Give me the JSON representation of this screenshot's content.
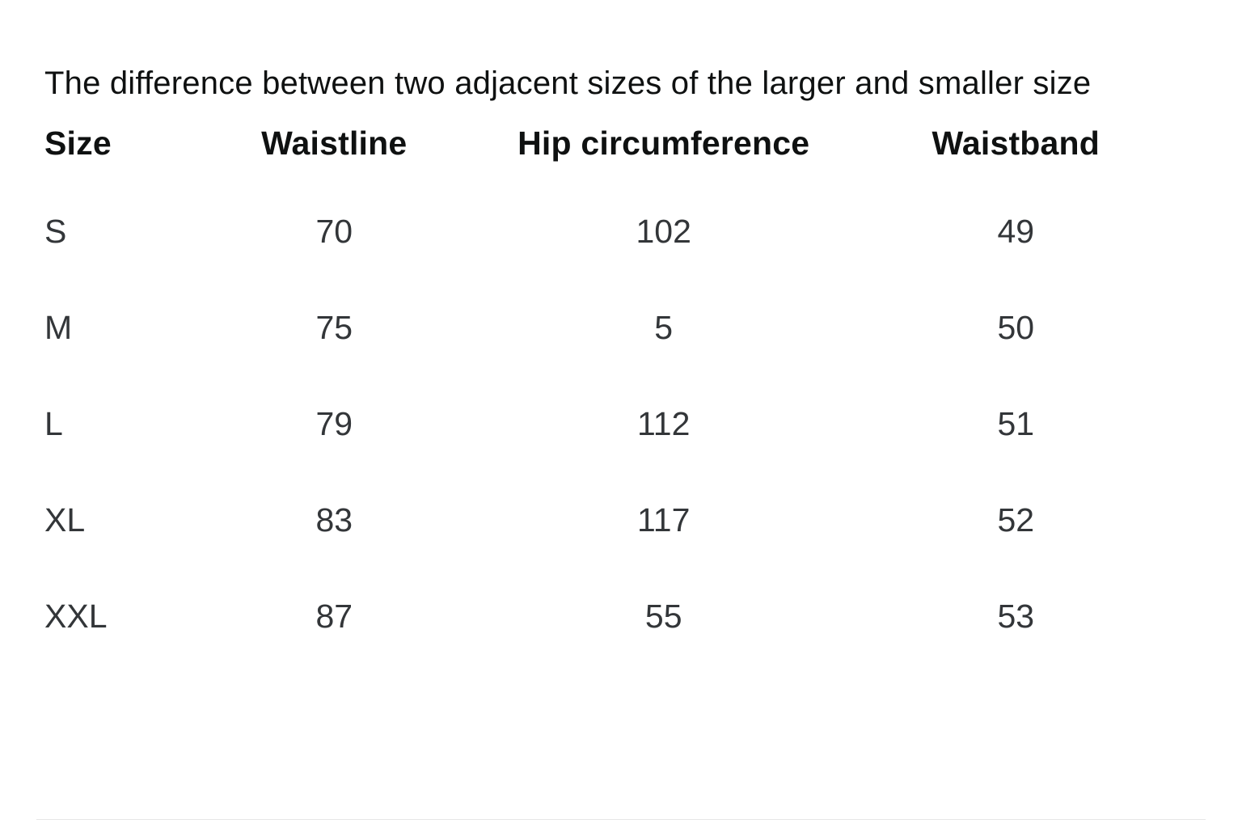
{
  "page": {
    "title": "The difference between two adjacent sizes of the larger and smaller size"
  },
  "size_chart": {
    "columns": [
      "Size",
      "Waistline",
      "Hip circumference",
      "Waistband"
    ],
    "rows": [
      {
        "size": "S",
        "waistline": "70",
        "hip": "102",
        "waistband": "49"
      },
      {
        "size": "M",
        "waistline": "75",
        "hip": "5",
        "waistband": "50"
      },
      {
        "size": "L",
        "waistline": "79",
        "hip": "112",
        "waistband": "51"
      },
      {
        "size": "XL",
        "waistline": "83",
        "hip": "117",
        "waistband": "52"
      },
      {
        "size": "XXL",
        "waistline": "87",
        "hip": "55",
        "waistband": "53"
      }
    ]
  },
  "colors": {
    "background": "#ffffff",
    "heading_text": "#0f1111",
    "body_text": "#333639",
    "divider": "#e7e7e7"
  }
}
